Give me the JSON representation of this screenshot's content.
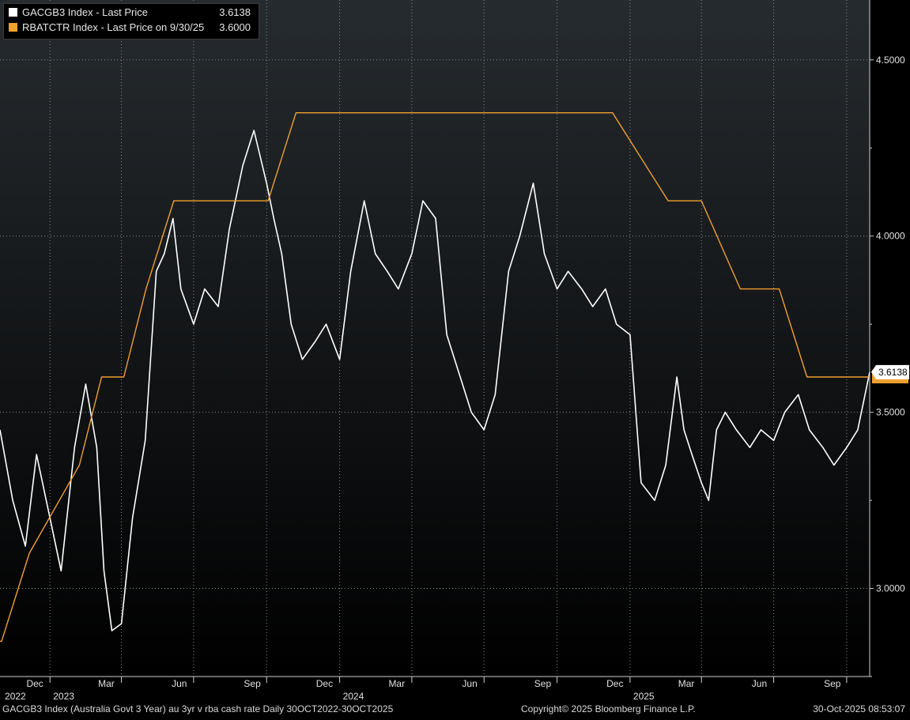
{
  "legend": {
    "series1_label": "GACGB3 Index - Last Price",
    "series1_value": "3.6138",
    "series2_label": "RBATCTR Index - Last Price on 9/30/25",
    "series2_value": "3.6000"
  },
  "last_price_badge": "3.6138",
  "footer": {
    "description": "GACGB3 Index (Australia Govt 3 Year) au 3yr v rba cash rate Daily 30OCT2022-30OCT2025",
    "copyright": "Copyright© 2025 Bloomberg Finance L.P.",
    "timestamp": "30-Oct-2025 08:53:07"
  },
  "colors": {
    "series1": "#ffffff",
    "series2": "#f0a030",
    "grid": "#8a8a8a",
    "background_top": "#252a2e",
    "background_bottom": "#000000"
  },
  "chart_data": {
    "type": "line",
    "y_ticks": [
      "3.0000",
      "3.5000",
      "4.0000",
      "4.5000"
    ],
    "x_month_ticks": [
      "Dec",
      "Mar",
      "Jun",
      "Sep",
      "Dec",
      "Mar",
      "Jun",
      "Sep",
      "Dec",
      "Mar",
      "Jun",
      "Sep"
    ],
    "x_year_ticks": [
      "2022",
      "2023",
      "2024",
      "2025"
    ],
    "ylim": [
      2.75,
      4.67
    ],
    "xlim": [
      "2022-10-30",
      "2025-10-30"
    ],
    "grid": true,
    "series": [
      {
        "name": "GACGB3 Index - Last Price",
        "color": "#ffffff",
        "x": [
          "2022-10-30",
          "2022-11-15",
          "2022-12-01",
          "2022-12-15",
          "2023-01-01",
          "2023-01-15",
          "2023-02-01",
          "2023-02-15",
          "2023-03-01",
          "2023-03-10",
          "2023-03-20",
          "2023-04-01",
          "2023-04-15",
          "2023-05-01",
          "2023-05-15",
          "2023-05-25",
          "2023-06-05",
          "2023-06-15",
          "2023-07-01",
          "2023-07-15",
          "2023-08-01",
          "2023-08-15",
          "2023-09-01",
          "2023-09-15",
          "2023-10-01",
          "2023-10-10",
          "2023-10-20",
          "2023-11-01",
          "2023-11-15",
          "2023-12-01",
          "2023-12-15",
          "2024-01-01",
          "2024-01-15",
          "2024-02-01",
          "2024-02-15",
          "2024-03-01",
          "2024-03-15",
          "2024-04-01",
          "2024-04-15",
          "2024-05-01",
          "2024-05-15",
          "2024-06-01",
          "2024-06-15",
          "2024-07-01",
          "2024-07-15",
          "2024-08-01",
          "2024-08-15",
          "2024-09-01",
          "2024-09-15",
          "2024-10-01",
          "2024-10-15",
          "2024-11-01",
          "2024-11-15",
          "2024-12-01",
          "2024-12-15",
          "2025-01-01",
          "2025-01-15",
          "2025-02-01",
          "2025-02-15",
          "2025-03-01",
          "2025-03-10",
          "2025-03-20",
          "2025-04-01",
          "2025-04-10",
          "2025-04-20",
          "2025-05-01",
          "2025-05-15",
          "2025-06-01",
          "2025-06-15",
          "2025-07-01",
          "2025-07-15",
          "2025-08-01",
          "2025-08-15",
          "2025-09-01",
          "2025-09-15",
          "2025-10-01",
          "2025-10-15",
          "2025-10-30"
        ],
        "values": [
          3.45,
          3.25,
          3.12,
          3.38,
          3.2,
          3.05,
          3.4,
          3.58,
          3.4,
          3.05,
          2.88,
          2.9,
          3.2,
          3.42,
          3.9,
          3.95,
          4.05,
          3.85,
          3.75,
          3.85,
          3.8,
          4.02,
          4.2,
          4.3,
          4.15,
          4.05,
          3.95,
          3.75,
          3.65,
          3.7,
          3.75,
          3.65,
          3.9,
          4.1,
          3.95,
          3.9,
          3.85,
          3.95,
          4.1,
          4.05,
          3.72,
          3.6,
          3.5,
          3.45,
          3.55,
          3.9,
          4.0,
          4.15,
          3.95,
          3.85,
          3.9,
          3.85,
          3.8,
          3.85,
          3.75,
          3.72,
          3.3,
          3.25,
          3.35,
          3.6,
          3.45,
          3.38,
          3.3,
          3.25,
          3.45,
          3.5,
          3.45,
          3.4,
          3.45,
          3.42,
          3.5,
          3.55,
          3.45,
          3.4,
          3.35,
          3.4,
          3.45,
          3.6138
        ]
      },
      {
        "name": "RBATCTR Index - Last Price on 9/30/25",
        "color": "#f0a030",
        "x": [
          "2022-10-30",
          "2022-11-01",
          "2022-12-06",
          "2023-02-07",
          "2023-03-07",
          "2023-04-04",
          "2023-05-02",
          "2023-06-06",
          "2023-07-04",
          "2023-08-01",
          "2023-09-05",
          "2023-10-03",
          "2023-11-07",
          "2024-02-06",
          "2024-05-07",
          "2024-08-06",
          "2024-11-05",
          "2024-12-10",
          "2025-02-18",
          "2025-04-01",
          "2025-05-20",
          "2025-07-08",
          "2025-08-12",
          "2025-09-30",
          "2025-10-30"
        ],
        "values": [
          2.85,
          2.85,
          3.1,
          3.35,
          3.6,
          3.6,
          3.85,
          4.1,
          4.1,
          4.1,
          4.1,
          4.1,
          4.35,
          4.35,
          4.35,
          4.35,
          4.35,
          4.35,
          4.1,
          4.1,
          3.85,
          3.85,
          3.6,
          3.6,
          3.6
        ]
      }
    ]
  }
}
